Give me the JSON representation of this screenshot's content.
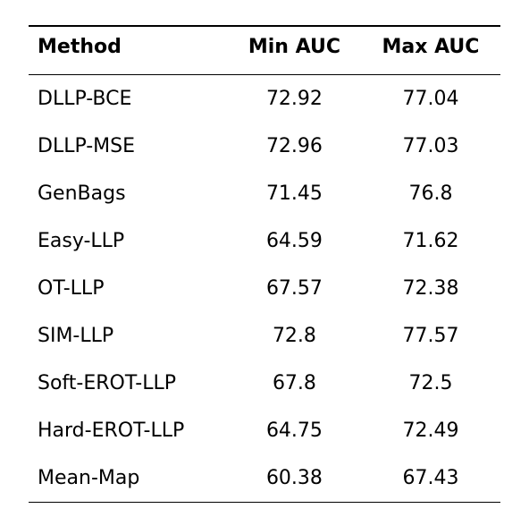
{
  "table": {
    "columns": [
      "Method",
      "Min AUC",
      "Max AUC"
    ],
    "rows": [
      {
        "method": "DLLP-BCE",
        "min": "72.92",
        "max": "77.04"
      },
      {
        "method": "DLLP-MSE",
        "min": "72.96",
        "max": "77.03"
      },
      {
        "method": "GenBags",
        "min": "71.45",
        "max": "76.8"
      },
      {
        "method": "Easy-LLP",
        "min": "64.59",
        "max": "71.62"
      },
      {
        "method": "OT-LLP",
        "min": "67.57",
        "max": "72.38"
      },
      {
        "method": "SIM-LLP",
        "min": "72.8",
        "max": "77.57"
      },
      {
        "method": "Soft-EROT-LLP",
        "min": "67.8",
        "max": "72.5"
      },
      {
        "method": "Hard-EROT-LLP",
        "min": "64.75",
        "max": "72.49"
      },
      {
        "method": "Mean-Map",
        "min": "60.38",
        "max": "67.43"
      }
    ],
    "header_fontsize": 22,
    "cell_fontsize": 22,
    "text_color": "#000000",
    "rule_color": "#000000",
    "background_color": "#ffffff",
    "column_align": [
      "left",
      "center",
      "center"
    ]
  }
}
